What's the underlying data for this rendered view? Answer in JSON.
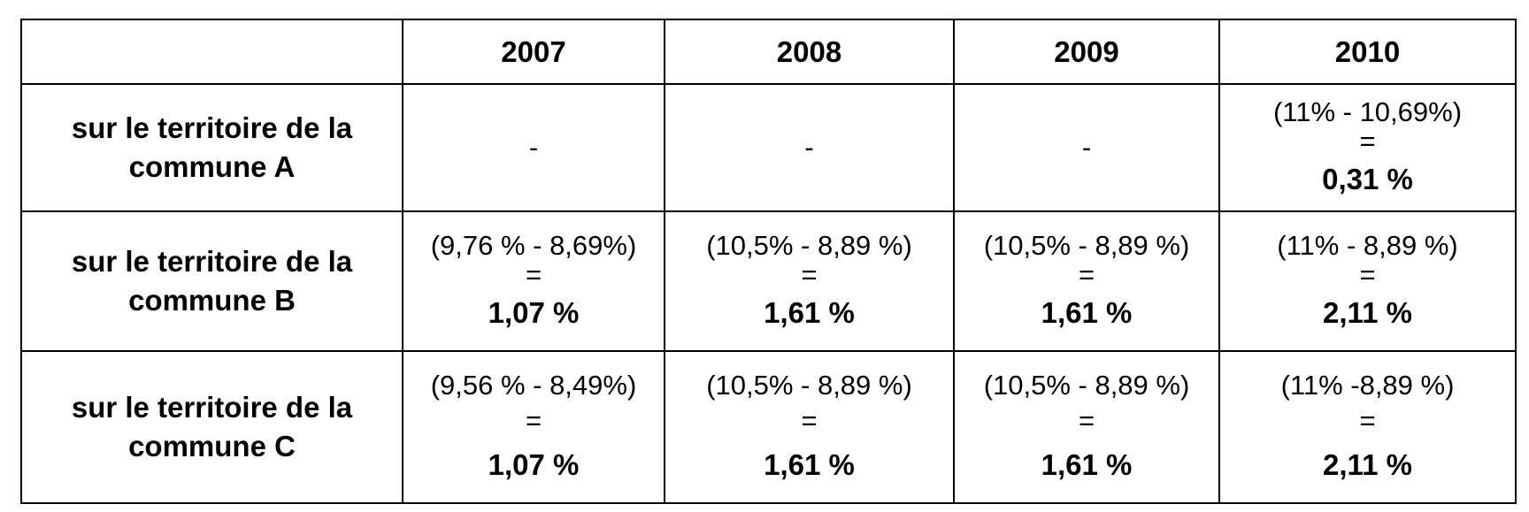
{
  "table": {
    "headers": [
      "",
      "2007",
      "2008",
      "2009",
      "2010"
    ],
    "rows": [
      {
        "label_line1": "sur le territoire de la",
        "label_line2": "commune A",
        "cells": [
          {
            "text": "-"
          },
          {
            "text": "-"
          },
          {
            "text": "-"
          },
          {
            "expr": "(11% - 10,69%)",
            "eq": "=",
            "result": "0,31 %"
          }
        ]
      },
      {
        "label_line1": "sur le territoire de la",
        "label_line2": "commune B",
        "cells": [
          {
            "expr": "(9,76 % - 8,69%)",
            "eq": "=",
            "result": "1,07 %"
          },
          {
            "expr": "(10,5% - 8,89 %)",
            "eq": "=",
            "result": "1,61 %"
          },
          {
            "expr": "(10,5% - 8,89 %)",
            "eq": "=",
            "result": "1,61 %"
          },
          {
            "expr": "(11% - 8,89 %)",
            "eq": "=",
            "result": "2,11 %"
          }
        ]
      },
      {
        "label_line1": "sur le territoire de la",
        "label_line2": "commune C",
        "cells": [
          {
            "expr": "(9,56 % - 8,49%)",
            "eq": "=",
            "result": "1,07 %"
          },
          {
            "expr": "(10,5% - 8,89 %)",
            "eq": "=",
            "result": "1,61 %"
          },
          {
            "expr": "(10,5% - 8,89 %)",
            "eq": "=",
            "result": "1,61 %"
          },
          {
            "expr": "(11% -8,89 %)",
            "eq": "=",
            "result": "2,11 %"
          }
        ]
      }
    ]
  }
}
